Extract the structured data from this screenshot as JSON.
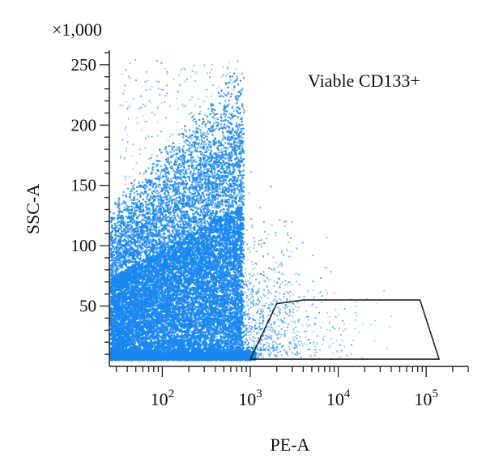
{
  "chart_data": {
    "type": "scatter",
    "title": "",
    "xlabel": "PE-A",
    "ylabel": "SSC-A",
    "y_multiplier": "×1,000",
    "x_scale": "log",
    "x_range": [
      25,
      300000
    ],
    "y_range": [
      0,
      262
    ],
    "x_ticks": [
      {
        "value": 100,
        "base": "10",
        "exp": "2"
      },
      {
        "value": 1000,
        "base": "10",
        "exp": "3"
      },
      {
        "value": 10000,
        "base": "10",
        "exp": "4"
      },
      {
        "value": 100000,
        "base": "10",
        "exp": "5"
      }
    ],
    "y_ticks": [
      {
        "value": 50,
        "label": "50"
      },
      {
        "value": 100,
        "label": "100"
      },
      {
        "value": 150,
        "label": "150"
      },
      {
        "value": 200,
        "label": "200"
      },
      {
        "value": 250,
        "label": "250"
      }
    ],
    "gate": {
      "name": "Viable CD133+",
      "vertices": [
        [
          1000,
          6
        ],
        [
          2000,
          52
        ],
        [
          4000,
          55
        ],
        [
          85000,
          55
        ],
        [
          140000,
          6
        ]
      ]
    },
    "point_color": "#1a87f0",
    "gate_color": "#222222",
    "grid": false,
    "legend": "none"
  }
}
